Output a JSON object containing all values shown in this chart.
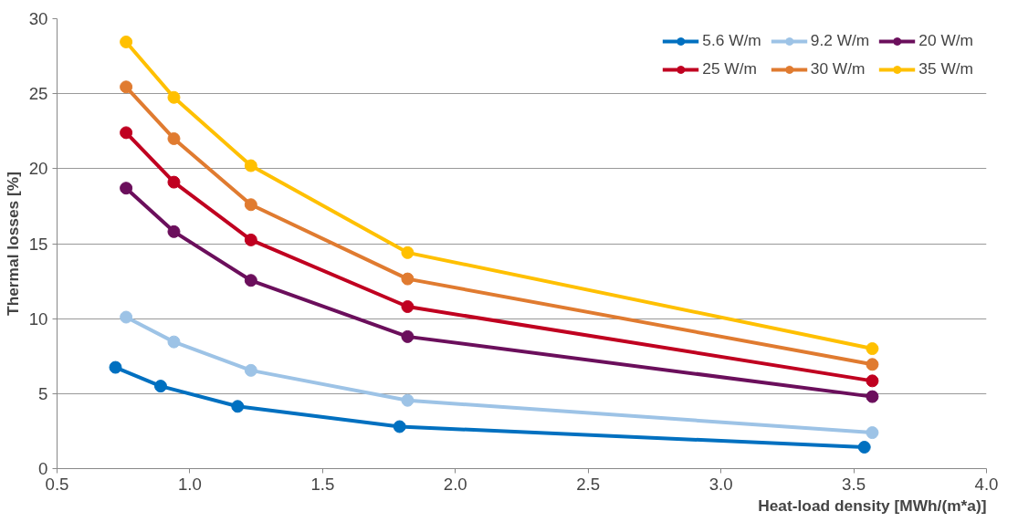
{
  "chart_data": {
    "type": "line",
    "xlabel": "Heat-load density [MWh/(m*a)]",
    "ylabel": "Thermal losses [%]",
    "xlim": [
      0.5,
      4.0
    ],
    "xticks": [
      {
        "value": 0.5,
        "label": "0.5"
      },
      {
        "value": 1.0,
        "label": "1.0"
      },
      {
        "value": 1.5,
        "label": "1.5"
      },
      {
        "value": 2.0,
        "label": "2.0"
      },
      {
        "value": 2.5,
        "label": "2.5"
      },
      {
        "value": 3.0,
        "label": "3.0"
      },
      {
        "value": 3.5,
        "label": "3.5"
      },
      {
        "value": 4.0,
        "label": "4.0"
      }
    ],
    "ylim": [
      0,
      30
    ],
    "yticks": [
      0,
      5,
      10,
      15,
      20,
      25,
      30
    ],
    "grid": "y",
    "legend": "top right",
    "marker": "circle",
    "line_style": "solid",
    "series": [
      {
        "name": "5.6 W/m",
        "color": "#0070c0",
        "x": [
          0.72,
          0.89,
          1.18,
          1.79,
          3.54
        ],
        "values": [
          6.75,
          5.5,
          4.15,
          2.8,
          1.43
        ]
      },
      {
        "name": "9.2 W/m",
        "color": "#9dc3e6",
        "x": [
          0.76,
          0.94,
          1.23,
          1.82,
          3.57
        ],
        "values": [
          10.1,
          8.45,
          6.55,
          4.55,
          2.4
        ]
      },
      {
        "name": "20 W/m",
        "color": "#6b0f5c",
        "x": [
          0.76,
          0.94,
          1.23,
          1.82,
          3.57
        ],
        "values": [
          18.7,
          15.8,
          12.55,
          8.8,
          4.8
        ]
      },
      {
        "name": "25 W/m",
        "color": "#c00020",
        "x": [
          0.76,
          0.94,
          1.23,
          1.82,
          3.57
        ],
        "values": [
          22.4,
          19.1,
          15.25,
          10.8,
          5.85
        ]
      },
      {
        "name": "30 W/m",
        "color": "#e07b30",
        "x": [
          0.76,
          0.94,
          1.23,
          1.82,
          3.57
        ],
        "values": [
          25.45,
          22.0,
          17.6,
          12.65,
          6.95
        ]
      },
      {
        "name": "35 W/m",
        "color": "#ffc000",
        "x": [
          0.76,
          0.94,
          1.23,
          1.82,
          3.57
        ],
        "values": [
          28.45,
          24.75,
          20.2,
          14.4,
          8.0
        ]
      }
    ]
  }
}
